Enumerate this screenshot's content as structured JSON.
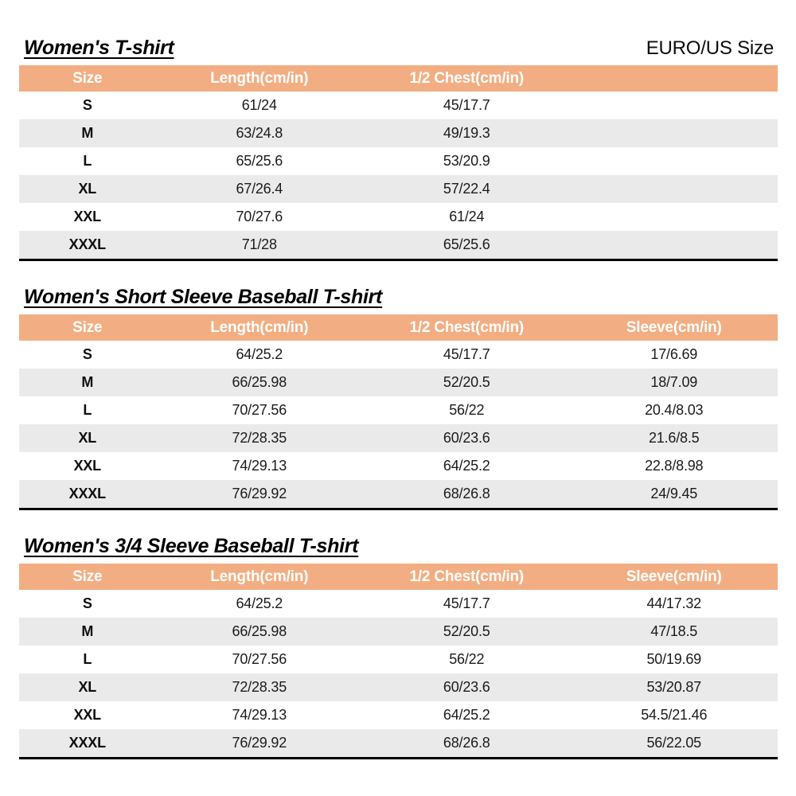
{
  "header": {
    "euro_us_label": "EURO/US Size"
  },
  "colors": {
    "header_bg": "#F2AE82",
    "header_text": "#FFFFFF",
    "stripe_bg": "#EAEAEA",
    "row_bg": "#FFFFFF",
    "border": "#000000"
  },
  "tables": [
    {
      "title": "Women's T-shirt",
      "columns": [
        "Size",
        "Length(cm/in)",
        "1/2 Chest(cm/in)",
        ""
      ],
      "rows": [
        [
          "S",
          "61/24",
          "45/17.7",
          ""
        ],
        [
          "M",
          "63/24.8",
          "49/19.3",
          ""
        ],
        [
          "L",
          "65/25.6",
          "53/20.9",
          ""
        ],
        [
          "XL",
          "67/26.4",
          "57/22.4",
          ""
        ],
        [
          "XXL",
          "70/27.6",
          "61/24",
          ""
        ],
        [
          "XXXL",
          "71/28",
          "65/25.6",
          ""
        ]
      ]
    },
    {
      "title": "Women's Short Sleeve Baseball T-shirt",
      "columns": [
        "Size",
        "Length(cm/in)",
        "1/2 Chest(cm/in)",
        "Sleeve(cm/in)"
      ],
      "rows": [
        [
          "S",
          "64/25.2",
          "45/17.7",
          "17/6.69"
        ],
        [
          "M",
          "66/25.98",
          "52/20.5",
          "18/7.09"
        ],
        [
          "L",
          "70/27.56",
          "56/22",
          "20.4/8.03"
        ],
        [
          "XL",
          "72/28.35",
          "60/23.6",
          "21.6/8.5"
        ],
        [
          "XXL",
          "74/29.13",
          "64/25.2",
          "22.8/8.98"
        ],
        [
          "XXXL",
          "76/29.92",
          "68/26.8",
          "24/9.45"
        ]
      ]
    },
    {
      "title": "Women's 3/4 Sleeve Baseball T-shirt",
      "columns": [
        "Size",
        "Length(cm/in)",
        "1/2 Chest(cm/in)",
        "Sleeve(cm/in)"
      ],
      "rows": [
        [
          "S",
          "64/25.2",
          "45/17.7",
          "44/17.32"
        ],
        [
          "M",
          "66/25.98",
          "52/20.5",
          "47/18.5"
        ],
        [
          "L",
          "70/27.56",
          "56/22",
          "50/19.69"
        ],
        [
          "XL",
          "72/28.35",
          "60/23.6",
          "53/20.87"
        ],
        [
          "XXL",
          "74/29.13",
          "64/25.2",
          "54.5/21.46"
        ],
        [
          "XXXL",
          "76/29.92",
          "68/26.8",
          "56/22.05"
        ]
      ]
    }
  ]
}
